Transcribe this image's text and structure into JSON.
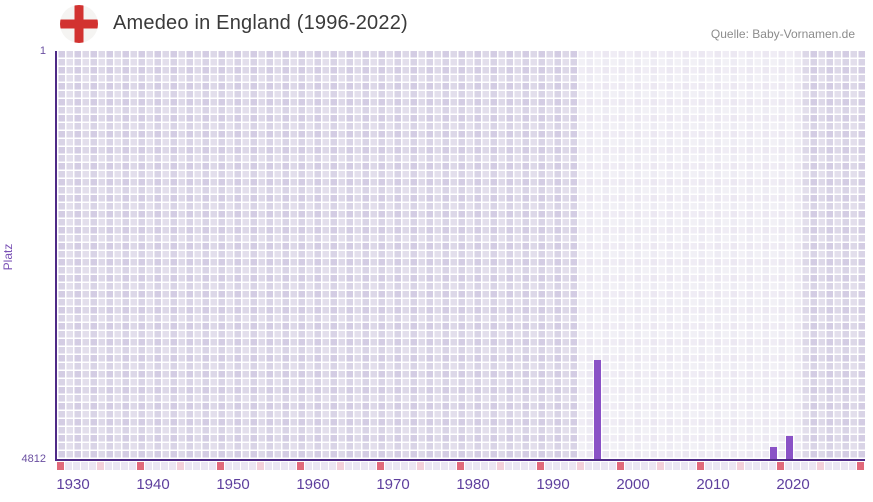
{
  "header": {
    "title": "Amedeo in England (1996-2022)",
    "source": "Quelle: Baby-Vornamen.de",
    "flag_icon": "england-flag-icon"
  },
  "chart_data": {
    "type": "bar",
    "title": "Amedeo in England (1996-2022)",
    "xlabel": "",
    "ylabel": "Platz",
    "y_axis": {
      "label": "Platz",
      "top_tick_label": "1",
      "bottom_tick_label": "4812",
      "min": 1,
      "max": 4812,
      "inverted": true
    },
    "x_axis": {
      "start_year": 1929,
      "end_year": 2029,
      "tick_years": [
        1930,
        1940,
        1950,
        1960,
        1970,
        1980,
        1990,
        2000,
        2010,
        2020
      ]
    },
    "bars": [
      {
        "year": 1996,
        "platz": 3650
      },
      {
        "year": 2018,
        "platz": 4670
      },
      {
        "year": 2020,
        "platz": 4540
      }
    ],
    "highlight_band": {
      "from_year": 1994,
      "to_year": 2022
    },
    "tick_strip": {
      "major_interval": 10,
      "major_start_year": 1929,
      "minor_start_year": 1934
    },
    "legend": "none",
    "grid": true,
    "colors": {
      "bar": "#8a52c6",
      "axis_line": "#4f2b87",
      "plot_base": "#e3dfec",
      "band_highlight": "rgba(255,255,255,0.55)",
      "tick_cell_default": "#ebe6f3",
      "tick_cell_major": "#e0697a",
      "tick_cell_minor": "#f2cfd9",
      "flag_cross": "#d23230",
      "flag_ground": "#f5f4f2"
    }
  }
}
